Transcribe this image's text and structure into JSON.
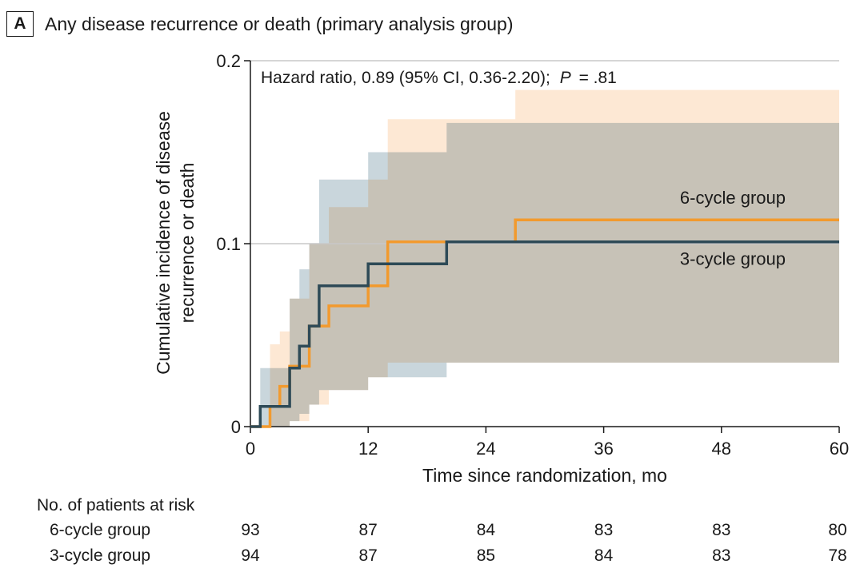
{
  "panel": {
    "label": "A",
    "title": "Any disease recurrence or death (primary analysis group)"
  },
  "chart_data": {
    "type": "line",
    "annotation_prefix": "Hazard ratio, 0.89 (95% CI, 0.36-2.20);",
    "annotation_p_label": "P",
    "annotation_p_value": "= .81",
    "xlabel": "Time since randomization, mo",
    "ylabel_line1": "Cumulative incidence of disease",
    "ylabel_line2": "recurrence or death",
    "xlim": [
      0,
      60
    ],
    "ylim": [
      0,
      0.2
    ],
    "xticks": [
      0,
      12,
      24,
      36,
      48,
      60
    ],
    "yticks": [
      {
        "value": 0,
        "label": "0"
      },
      {
        "value": 0.1,
        "label": "0.1"
      },
      {
        "value": 0.2,
        "label": "0.2"
      }
    ],
    "step": true,
    "series": [
      {
        "name": "6-cycle group",
        "color": "#f29a2e",
        "ci_color": "#fde8d4",
        "x": [
          0,
          2,
          3,
          4,
          5,
          6,
          8,
          12,
          14,
          20,
          27,
          60
        ],
        "y": [
          0,
          0.011,
          0.022,
          0.033,
          0.033,
          0.055,
          0.066,
          0.077,
          0.101,
          0.101,
          0.113,
          0.113
        ],
        "ci_lower": [
          0,
          0,
          0,
          0.003,
          0.003,
          0.012,
          0.02,
          0.027,
          0.035,
          0.035,
          0.035,
          0.035
        ],
        "ci_upper": [
          0,
          0.045,
          0.052,
          0.07,
          0.07,
          0.1,
          0.12,
          0.135,
          0.168,
          0.168,
          0.184,
          0.184
        ]
      },
      {
        "name": "3-cycle group",
        "color": "#2e4a57",
        "ci_color": "#c9d6dc",
        "x": [
          0,
          1,
          4,
          5,
          6,
          7,
          12,
          20,
          60
        ],
        "y": [
          0,
          0.011,
          0.032,
          0.044,
          0.055,
          0.077,
          0.089,
          0.101,
          0.101
        ],
        "ci_lower": [
          0,
          0,
          0.003,
          0.007,
          0.012,
          0.02,
          0.027,
          0.035,
          0.043
        ],
        "ci_upper": [
          0,
          0.032,
          0.07,
          0.086,
          0.1,
          0.135,
          0.15,
          0.166,
          0.166
        ]
      }
    ]
  },
  "risk_table": {
    "title": "No. of patients at risk",
    "rows": [
      {
        "label": "6-cycle group",
        "values": [
          "93",
          "87",
          "84",
          "83",
          "83",
          "80"
        ]
      },
      {
        "label": "3-cycle group",
        "values": [
          "94",
          "87",
          "85",
          "84",
          "83",
          "78"
        ]
      }
    ]
  }
}
